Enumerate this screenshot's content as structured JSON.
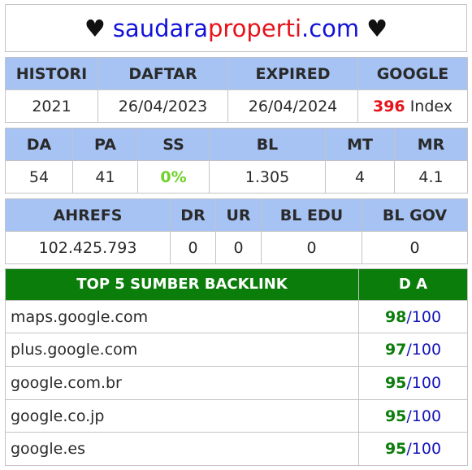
{
  "title": {
    "heart_left": "♥",
    "site_part1": "saudara",
    "site_part2": "properti",
    "site_part3": ".com",
    "heart_right": "♥"
  },
  "history": {
    "headers": [
      "HISTORI",
      "DAFTAR",
      "EXPIRED",
      "GOOGLE"
    ],
    "histori": "2021",
    "daftar": "26/04/2023",
    "expired": "26/04/2024",
    "google_count": "396",
    "google_suffix": "Index"
  },
  "metrics": {
    "headers": [
      "DA",
      "PA",
      "SS",
      "BL",
      "MT",
      "MR"
    ],
    "values": [
      "54",
      "41",
      "0%",
      "1.305",
      "4",
      "4.1"
    ]
  },
  "ahrefs": {
    "headers": [
      "AHREFS",
      "DR",
      "UR",
      "BL EDU",
      "BL GOV"
    ],
    "values": [
      "102.425.793",
      "0",
      "0",
      "0",
      "0"
    ]
  },
  "backlinks": {
    "header_site": "TOP 5 SUMBER BACKLINK",
    "header_da": "D A",
    "separator": "/",
    "rows": [
      {
        "site": "maps.google.com",
        "da": "98",
        "max": "100"
      },
      {
        "site": "plus.google.com",
        "da": "97",
        "max": "100"
      },
      {
        "site": "google.com.br",
        "da": "95",
        "max": "100"
      },
      {
        "site": "google.co.jp",
        "da": "95",
        "max": "100"
      },
      {
        "site": "google.es",
        "da": "95",
        "max": "100"
      }
    ]
  },
  "colors": {
    "header_blue": "#a6c3f4",
    "header_green": "#0b7d0b",
    "accent_red": "#e8121a",
    "site_blue": "#1212d8",
    "ss_green": "#6fd22a"
  }
}
